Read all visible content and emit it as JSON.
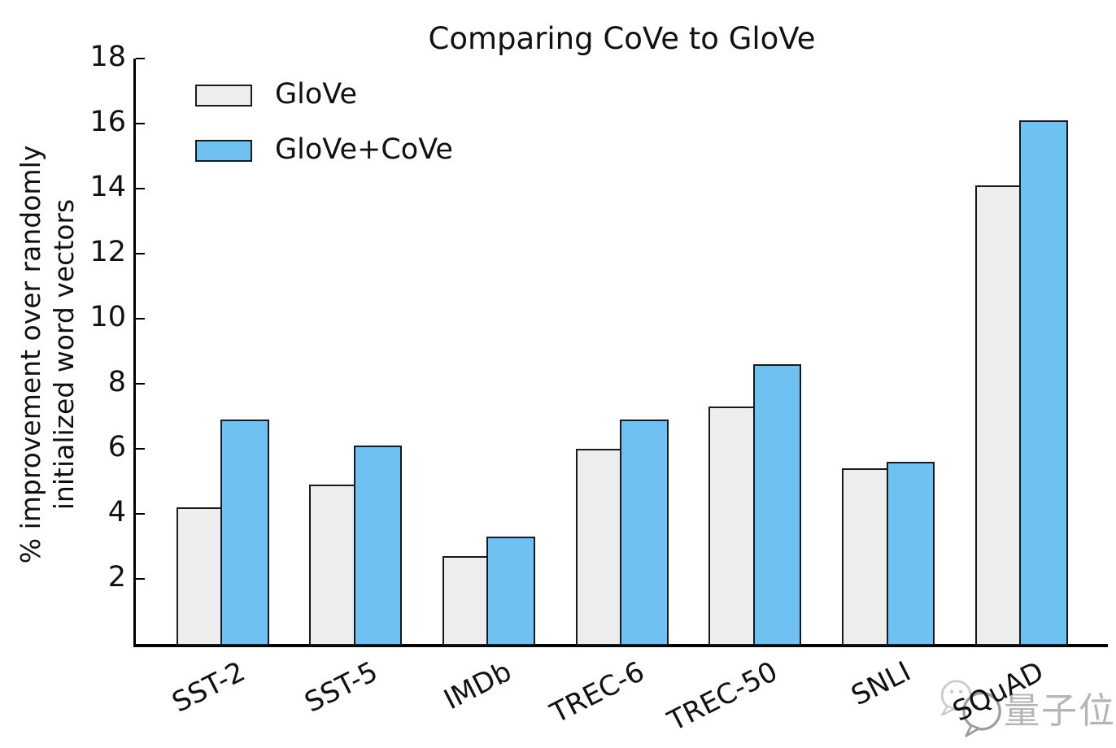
{
  "chart_data": {
    "type": "bar",
    "title": "Comparing CoVe to GloVe",
    "categories": [
      "SST-2",
      "SST-5",
      "IMDb",
      "TREC-6",
      "TREC-50",
      "SNLI",
      "SQuAD"
    ],
    "series": [
      {
        "name": "GloVe",
        "color": "#ededee",
        "values": [
          4.2,
          4.9,
          2.7,
          6.0,
          7.3,
          5.4,
          14.1
        ]
      },
      {
        "name": "GloVe+CoVe",
        "color": "#6fc1f2",
        "values": [
          6.9,
          6.1,
          3.3,
          6.9,
          8.6,
          5.6,
          16.1
        ]
      }
    ],
    "xlabel": "",
    "ylabel_lines": [
      "% improvement over randomly",
      "initialized word vectors"
    ],
    "ylim": [
      0,
      18
    ],
    "yticks": [
      2,
      4,
      6,
      8,
      10,
      12,
      14,
      16,
      18
    ],
    "grid": false,
    "legend_position": "upper left",
    "bar_edge_color": "#141a22",
    "axis_color": "#000000",
    "xtick_rotation_deg": 27
  },
  "watermark": {
    "text": "量子位",
    "icon": "wechat-bubbles-icon",
    "color": "#b5b5b5"
  }
}
